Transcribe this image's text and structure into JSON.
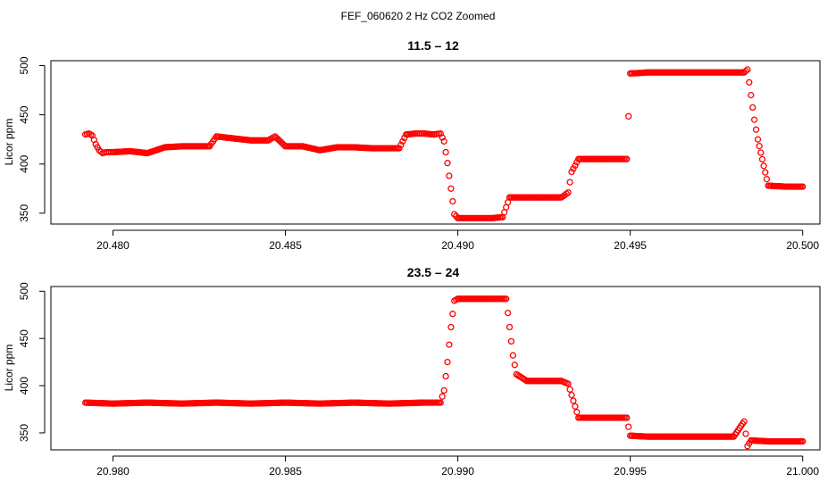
{
  "figure": {
    "title": "FEF_060620  2 Hz CO2 Zoomed",
    "point_color": "#ff0000",
    "marker": "open-circle"
  },
  "chart_data": [
    {
      "type": "scatter",
      "title": "11.5 – 12",
      "xlabel": "",
      "ylabel": "Licor ppm",
      "xlim": [
        20.4782,
        20.5005
      ],
      "ylim": [
        339,
        505
      ],
      "x_ticks": [
        "20.480",
        "20.485",
        "20.490",
        "20.495",
        "20.500"
      ],
      "y_ticks": [
        "350",
        "400",
        "450",
        "500"
      ],
      "grid": false,
      "series": [
        {
          "color": "#ff0000",
          "x": [
            20.4792,
            20.4793,
            20.4794,
            20.4795,
            20.4796,
            20.4797,
            20.4798,
            20.48,
            20.4805,
            20.481,
            20.4815,
            20.482,
            20.4825,
            20.4828,
            20.483,
            20.4835,
            20.484,
            20.4845,
            20.4847,
            20.485,
            20.4855,
            20.486,
            20.4865,
            20.487,
            20.4875,
            20.488,
            20.4883,
            20.4885,
            20.4888,
            20.489,
            20.4893,
            20.4895,
            20.4896,
            20.4897,
            20.4898,
            20.4899,
            20.49,
            20.4905,
            20.491,
            20.4913,
            20.4915,
            20.492,
            20.4925,
            20.493,
            20.4932,
            20.4933,
            20.4935,
            20.494,
            20.4945,
            20.4949,
            20.495,
            20.4955,
            20.496,
            20.4965,
            20.497,
            20.4975,
            20.498,
            20.4983,
            20.4984,
            20.4985,
            20.4986,
            20.4987,
            20.499,
            20.4995,
            20.5
          ],
          "y": [
            430,
            431,
            429,
            420,
            414,
            411,
            412,
            412,
            413,
            411,
            417,
            418,
            418,
            418,
            428,
            426,
            424,
            424,
            428,
            418,
            418,
            414,
            417,
            417,
            416,
            416,
            416,
            430,
            431,
            431,
            430,
            431,
            423,
            401,
            375,
            349,
            345,
            345,
            345,
            346,
            366,
            366,
            366,
            366,
            371,
            392,
            405,
            405,
            405,
            405,
            492,
            493,
            493,
            493,
            493,
            493,
            493,
            493,
            496,
            470,
            445,
            425,
            378,
            377,
            377
          ]
        }
      ]
    },
    {
      "type": "scatter",
      "title": "23.5 – 24",
      "xlabel": "",
      "ylabel": "Licor ppm",
      "xlim": [
        20.9782,
        21.0005
      ],
      "ylim": [
        332,
        505
      ],
      "x_ticks": [
        "20.980",
        "20.985",
        "20.990",
        "20.995",
        "21.000"
      ],
      "y_ticks": [
        "350",
        "400",
        "450",
        "500"
      ],
      "grid": false,
      "series": [
        {
          "color": "#ff0000",
          "x": [
            20.9792,
            20.98,
            20.981,
            20.982,
            20.983,
            20.984,
            20.985,
            20.986,
            20.987,
            20.988,
            20.989,
            20.9895,
            20.9896,
            20.9897,
            20.9898,
            20.9899,
            20.99,
            20.9905,
            20.991,
            20.9914,
            20.9915,
            20.9916,
            20.9917,
            20.992,
            20.9925,
            20.993,
            20.9932,
            20.9933,
            20.9934,
            20.9935,
            20.994,
            20.9945,
            20.9949,
            20.995,
            20.9955,
            20.996,
            20.9965,
            20.997,
            20.9975,
            20.998,
            20.9983,
            20.9984,
            20.9985,
            20.999,
            20.9995,
            21.0
          ],
          "y": [
            382,
            381,
            382,
            381,
            382,
            381,
            382,
            381,
            382,
            381,
            382,
            382,
            395,
            425,
            462,
            490,
            492,
            492,
            492,
            492,
            462,
            432,
            412,
            405,
            405,
            405,
            402,
            390,
            378,
            366,
            366,
            366,
            366,
            347,
            346,
            346,
            346,
            346,
            346,
            346,
            362,
            336,
            342,
            341,
            341,
            341
          ]
        }
      ]
    }
  ]
}
